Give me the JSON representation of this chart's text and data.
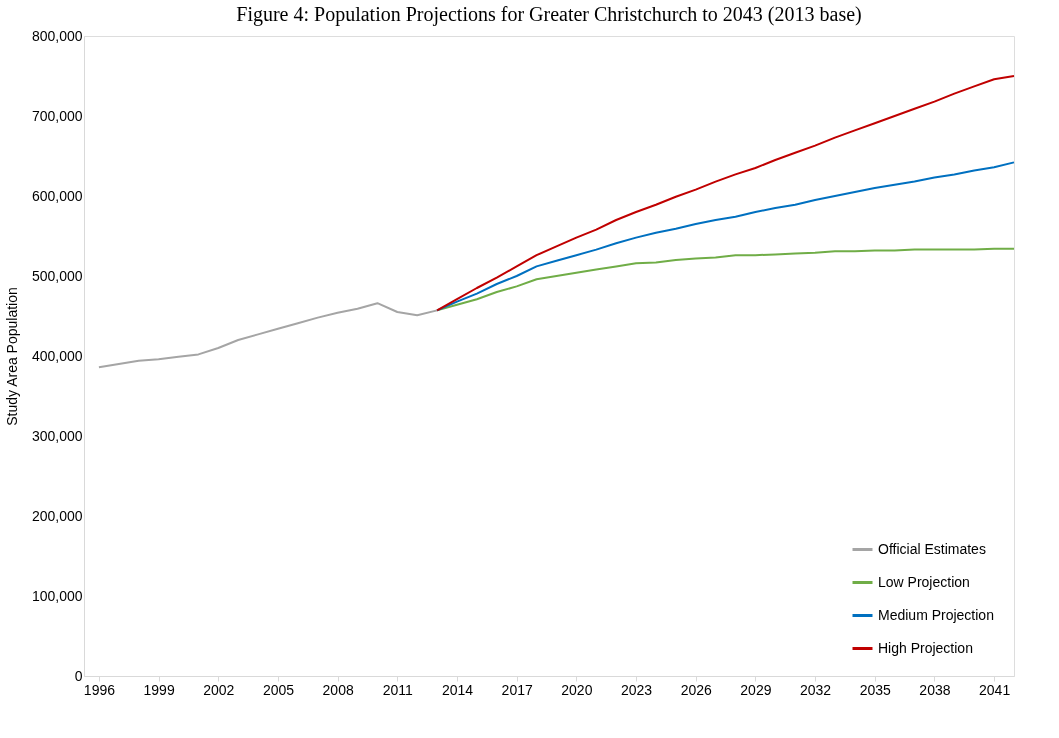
{
  "chart_data": {
    "type": "line",
    "title": "Figure 4: Population Projections for Greater Christchurch to 2043 (2013 base)",
    "ylabel": "Study Area Population",
    "xlim": [
      1995.25,
      2042
    ],
    "xticks": [
      1996,
      1999,
      2002,
      2005,
      2008,
      2011,
      2014,
      2017,
      2020,
      2023,
      2026,
      2029,
      2032,
      2035,
      2038,
      2041
    ],
    "ylim": [
      0,
      800000
    ],
    "yticks": [
      {
        "value": 0,
        "label": "0"
      },
      {
        "value": 100000,
        "label": "100,000"
      },
      {
        "value": 200000,
        "label": "200,000"
      },
      {
        "value": 300000,
        "label": "300,000"
      },
      {
        "value": 400000,
        "label": "400,000"
      },
      {
        "value": 500000,
        "label": "500,000"
      },
      {
        "value": 600000,
        "label": "600,000"
      },
      {
        "value": 700000,
        "label": "700,000"
      },
      {
        "value": 800000,
        "label": "800,000"
      }
    ],
    "grid": false,
    "legend": "bottom right",
    "marker": "none",
    "line_style": "solid",
    "series": [
      {
        "name": "Official Estimates",
        "color": "#a5a5a5",
        "x": [
          1996,
          1997,
          1998,
          1999,
          2000,
          2001,
          2002,
          2003,
          2004,
          2005,
          2006,
          2007,
          2008,
          2009,
          2010,
          2011,
          2012,
          2013
        ],
        "values": [
          386000,
          390000,
          394000,
          396000,
          399000,
          402000,
          410000,
          420000,
          427000,
          434000,
          441000,
          448000,
          454000,
          459000,
          466000,
          455000,
          451000,
          457000
        ]
      },
      {
        "name": "Low Projection",
        "color": "#70ad47",
        "x": [
          2013,
          2014,
          2015,
          2016,
          2017,
          2018,
          2019,
          2020,
          2021,
          2022,
          2023,
          2024,
          2025,
          2026,
          2027,
          2028,
          2029,
          2030,
          2031,
          2032,
          2033,
          2034,
          2035,
          2036,
          2037,
          2038,
          2039,
          2040,
          2041,
          2042
        ],
        "values": [
          457000,
          464000,
          471000,
          480000,
          487000,
          496000,
          500000,
          504000,
          508000,
          512000,
          516000,
          517000,
          520000,
          522000,
          523000,
          526000,
          526000,
          527000,
          528000,
          529000,
          531000,
          531000,
          532000,
          532000,
          533000,
          533000,
          533000,
          533000,
          534000,
          534000
        ]
      },
      {
        "name": "Medium Projection",
        "color": "#0070c0",
        "x": [
          2013,
          2014,
          2015,
          2016,
          2017,
          2018,
          2019,
          2020,
          2021,
          2022,
          2023,
          2024,
          2025,
          2026,
          2027,
          2028,
          2029,
          2030,
          2031,
          2032,
          2033,
          2034,
          2035,
          2036,
          2037,
          2038,
          2039,
          2040,
          2041,
          2042
        ],
        "values": [
          457000,
          468000,
          478000,
          490000,
          500000,
          512000,
          519000,
          526000,
          533000,
          541000,
          548000,
          554000,
          559000,
          565000,
          570000,
          574000,
          580000,
          585000,
          589000,
          595000,
          600000,
          605000,
          610000,
          614000,
          618000,
          623000,
          627000,
          632000,
          636000,
          642000
        ]
      },
      {
        "name": "High Projection",
        "color": "#c00000",
        "x": [
          2013,
          2014,
          2015,
          2016,
          2017,
          2018,
          2019,
          2020,
          2021,
          2022,
          2023,
          2024,
          2025,
          2026,
          2027,
          2028,
          2029,
          2030,
          2031,
          2032,
          2033,
          2034,
          2035,
          2036,
          2037,
          2038,
          2039,
          2040,
          2041,
          2042
        ],
        "values": [
          457000,
          471000,
          485000,
          498000,
          512000,
          526000,
          537000,
          548000,
          558000,
          570000,
          580000,
          589000,
          599000,
          608000,
          618000,
          627000,
          635000,
          645000,
          654000,
          663000,
          673000,
          682000,
          691000,
          700000,
          709000,
          718000,
          728000,
          737000,
          746000,
          750000
        ]
      }
    ]
  }
}
